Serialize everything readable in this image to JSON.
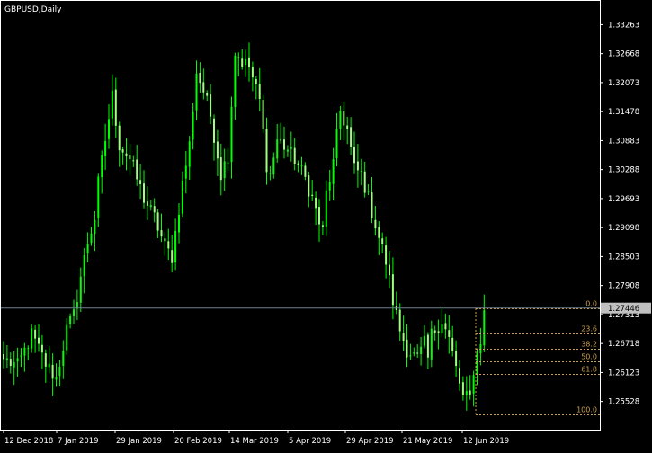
{
  "window": {
    "title": "GBPUSD,Daily"
  },
  "colors": {
    "background": "#000000",
    "frame": "#ffffff",
    "text": "#ffffff",
    "bull_candle": "#00ff00",
    "bear_candle": "#a0ff80",
    "fibo": "#c8a050",
    "bid_line": "#708090",
    "price_tag_bg": "#c0c0c0",
    "price_tag_text": "#000000"
  },
  "chart_data": {
    "type": "candlestick",
    "symbol": "GBPUSD",
    "timeframe": "Daily",
    "ylim": [
      1.2495,
      1.3375
    ],
    "y_ticks": [
      "1.33263",
      "1.32668",
      "1.32073",
      "1.31478",
      "1.30883",
      "1.30288",
      "1.29693",
      "1.29098",
      "1.28503",
      "1.27908",
      "1.27313",
      "1.26718",
      "1.26123",
      "1.25528"
    ],
    "x_ticks": [
      "12 Dec 2018",
      "7 Jan 2019",
      "29 Jan 2019",
      "20 Feb 2019",
      "14 Mar 2019",
      "5 Apr 2019",
      "29 Apr 2019",
      "21 May 2019",
      "12 Jun 2019"
    ],
    "current_price": "1.27446",
    "close_path": [
      [
        0,
        1.264
      ],
      [
        4,
        1.2625
      ],
      [
        8,
        1.269
      ],
      [
        12,
        1.263
      ],
      [
        15,
        1.26
      ],
      [
        18,
        1.27
      ],
      [
        20,
        1.273
      ],
      [
        22,
        1.281
      ],
      [
        24,
        1.288
      ],
      [
        26,
        1.293
      ],
      [
        27,
        1.3
      ],
      [
        29,
        1.309
      ],
      [
        31,
        1.318
      ],
      [
        33,
        1.308
      ],
      [
        36,
        1.305
      ],
      [
        38,
        1.301
      ],
      [
        40,
        1.297
      ],
      [
        43,
        1.293
      ],
      [
        46,
        1.287
      ],
      [
        48,
        1.285
      ],
      [
        51,
        1.3
      ],
      [
        53,
        1.308
      ],
      [
        55,
        1.323
      ],
      [
        57,
        1.319
      ],
      [
        59,
        1.314
      ],
      [
        62,
        1.302
      ],
      [
        64,
        1.306
      ],
      [
        66,
        1.327
      ],
      [
        68,
        1.325
      ],
      [
        70,
        1.324
      ],
      [
        73,
        1.317
      ],
      [
        75,
        1.304
      ],
      [
        76,
        1.302
      ],
      [
        78,
        1.309
      ],
      [
        81,
        1.307
      ],
      [
        83,
        1.305
      ],
      [
        86,
        1.301
      ],
      [
        88,
        1.297
      ],
      [
        90,
        1.292
      ],
      [
        91,
        1.29
      ],
      [
        92,
        1.298
      ],
      [
        94,
        1.304
      ],
      [
        96,
        1.315
      ],
      [
        98,
        1.311
      ],
      [
        100,
        1.303
      ],
      [
        102,
        1.302
      ],
      [
        104,
        1.297
      ],
      [
        107,
        1.289
      ],
      [
        109,
        1.284
      ],
      [
        111,
        1.276
      ],
      [
        113,
        1.27
      ],
      [
        115,
        1.266
      ],
      [
        118,
        1.264
      ],
      [
        120,
        1.267
      ],
      [
        121,
        1.264
      ],
      [
        122,
        1.269
      ],
      [
        125,
        1.272
      ],
      [
        127,
        1.268
      ],
      [
        129,
        1.262
      ],
      [
        131,
        1.256
      ],
      [
        133,
        1.256
      ],
      [
        134,
        1.262
      ],
      [
        136,
        1.268
      ],
      [
        137,
        1.274
      ]
    ],
    "fibonacci": {
      "levels": [
        {
          "label": "0.0",
          "value": 1.2744
        },
        {
          "label": "23.6",
          "value": 1.2693
        },
        {
          "label": "38.2",
          "value": 1.2661
        },
        {
          "label": "50.0",
          "value": 1.2636
        },
        {
          "label": "61.8",
          "value": 1.261
        },
        {
          "label": "100.0",
          "value": 1.2527
        }
      ]
    }
  }
}
